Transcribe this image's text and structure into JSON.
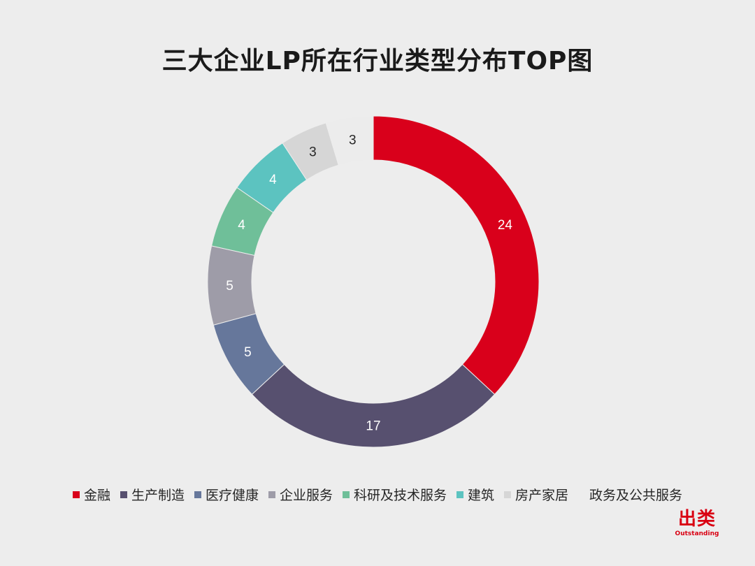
{
  "chart_data": {
    "type": "pie",
    "title": "三大企业LP所在行业类型分布TOP图",
    "categories": [
      "金融",
      "生产制造",
      "医疗健康",
      "企业服务",
      "科研及技术服务",
      "建筑",
      "房产家居",
      "政务及公共服务"
    ],
    "values": [
      24,
      17,
      5,
      5,
      4,
      4,
      3,
      3
    ],
    "colors": [
      "#d9001b",
      "#57506f",
      "#66779b",
      "#9e9ca8",
      "#6fbf99",
      "#5cc3c0",
      "#d6d6d6",
      "#ececec"
    ],
    "legend_colors": [
      "#d9001b",
      "#57506f",
      "#66779b",
      "#9e9ca8",
      "#6fbf99",
      "#5cc3c0",
      "#d6d6d6",
      "#ededed"
    ],
    "label_colors": [
      "#ffffff",
      "#ffffff",
      "#ffffff",
      "#ffffff",
      "#ffffff",
      "#ffffff",
      "#262626",
      "#262626"
    ],
    "legend_position": "bottom",
    "donut": true
  },
  "brand": {
    "name_cn": "出类",
    "name_en": "Outstanding",
    "color": "#d90012"
  }
}
